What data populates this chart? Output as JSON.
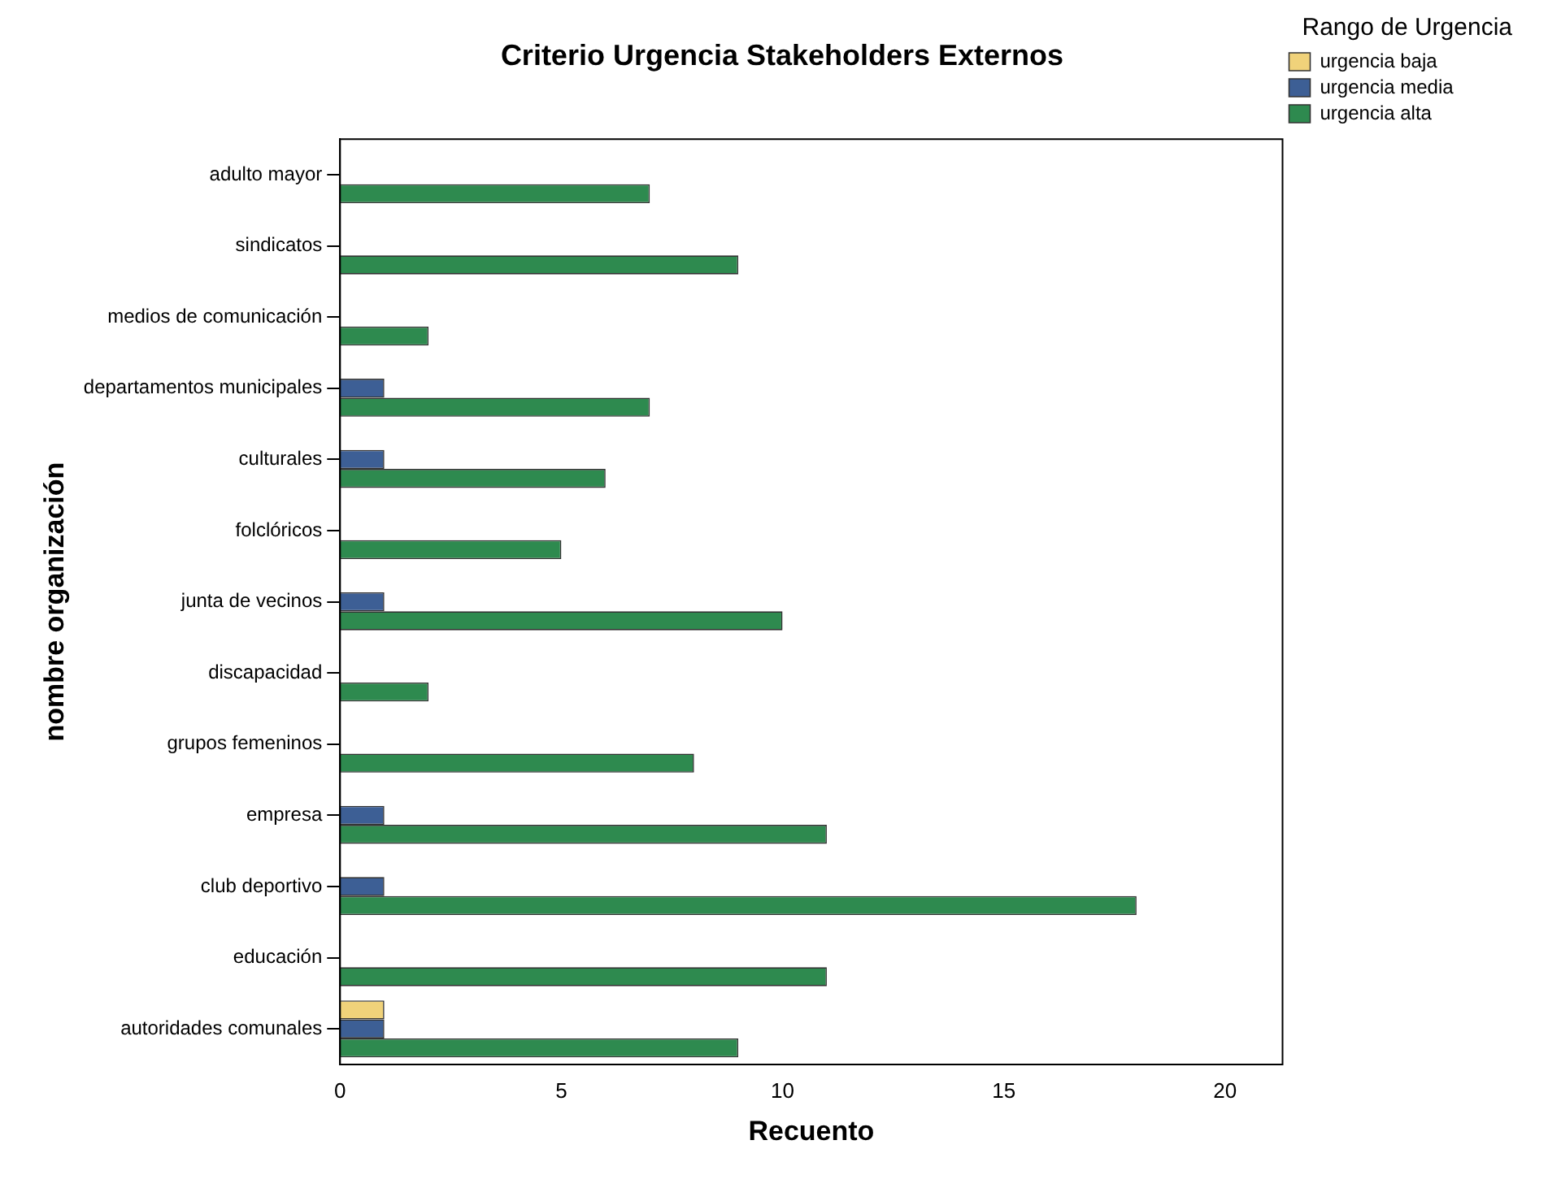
{
  "chart_data": {
    "type": "bar",
    "orientation": "horizontal",
    "title": "Criterio Urgencia Stakeholders Externos",
    "xlabel": "Recuento",
    "ylabel": "nombre organización",
    "legend_title": "Rango de Urgencia",
    "legend": "top right",
    "grid": false,
    "categories": [
      "adulto mayor",
      "sindicatos",
      "medios de comunicación",
      "departamentos municipales",
      "culturales",
      "folclóricos",
      "junta de vecinos",
      "discapacidad",
      "grupos femeninos",
      "empresa",
      "club deportivo",
      "educación",
      "autoridades comunales"
    ],
    "series": [
      {
        "name": "urgencia baja",
        "color": "#f0d27a",
        "values": [
          0,
          0,
          0,
          0,
          0,
          0,
          0,
          0,
          0,
          0,
          0,
          0,
          1
        ]
      },
      {
        "name": "urgencia media",
        "color": "#3d5f95",
        "values": [
          0,
          0,
          0,
          1,
          1,
          0,
          1,
          0,
          0,
          1,
          1,
          0,
          1
        ]
      },
      {
        "name": "urgencia alta",
        "color": "#2e8a4f",
        "values": [
          7,
          9,
          2,
          7,
          6,
          5,
          10,
          2,
          8,
          11,
          18,
          11,
          9
        ]
      }
    ],
    "xlim": [
      0,
      21.3
    ],
    "xticks": [
      0,
      5,
      10,
      15,
      20
    ]
  }
}
